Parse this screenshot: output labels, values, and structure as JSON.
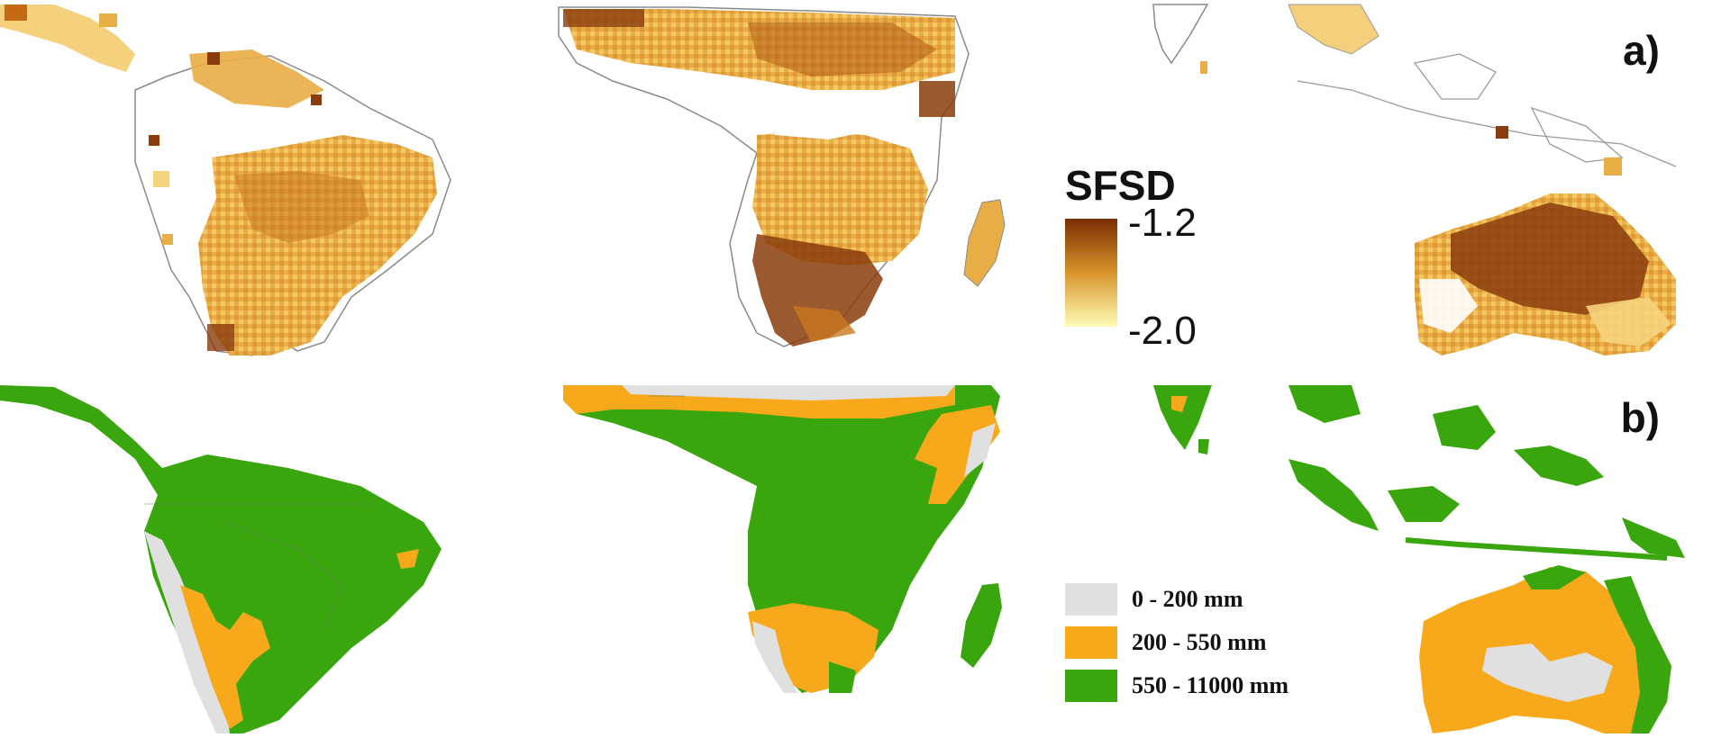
{
  "panels": {
    "a": {
      "label": "a)"
    },
    "b": {
      "label": "b)"
    }
  },
  "sfsd_legend": {
    "title": "SFSD",
    "max_label": "-1.2",
    "min_label": "-2.0",
    "color_high": "#7a2e05",
    "color_mid": "#d8942b",
    "color_low": "#fffcb8"
  },
  "rainfall_legend": {
    "items": [
      {
        "label": "0 - 200 mm",
        "color": "#e0e0e0"
      },
      {
        "label": "200 - 550 mm",
        "color": "#f8a81b"
      },
      {
        "label": "550 - 11000 mm",
        "color": "#3aa60e"
      }
    ]
  },
  "colors": {
    "green": "#3aa60e",
    "orange": "#f8a81b",
    "grey": "#e0e0e0",
    "sfsd_base": "#e9ad45",
    "sfsd_light": "#f6d37d",
    "sfsd_dark": "#8a3c0c",
    "boundary": "#6e6e6e"
  }
}
